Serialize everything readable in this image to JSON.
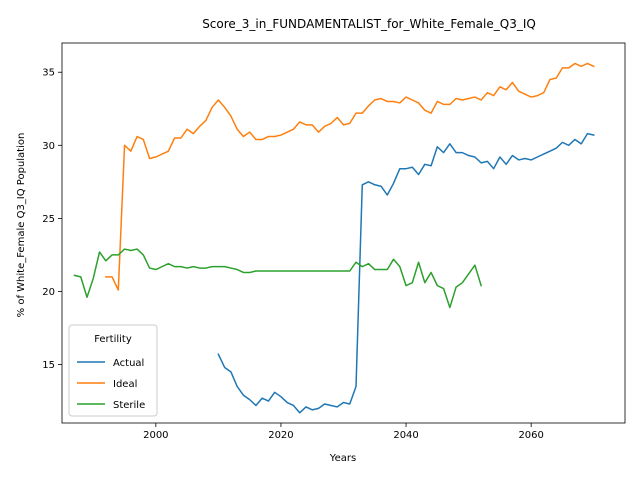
{
  "chart_data": {
    "type": "line",
    "title": "Score_3_in_FUNDAMENTALIST_for_White_Female_Q3_IQ",
    "xlabel": "Years",
    "ylabel": "% of White_Female Q3_IQ Population",
    "xlim": [
      1985,
      2075
    ],
    "ylim": [
      11.0,
      37.0
    ],
    "x_ticks": [
      2000,
      2020,
      2040,
      2060
    ],
    "y_ticks": [
      15,
      20,
      25,
      30,
      35
    ],
    "grid": false,
    "legend": {
      "title": "Fertility",
      "placement": "lower-left"
    },
    "series": [
      {
        "name": "Actual",
        "color": "#1f77b4",
        "x": [
          2010,
          2011,
          2012,
          2013,
          2014,
          2015,
          2016,
          2017,
          2018,
          2019,
          2020,
          2021,
          2022,
          2023,
          2024,
          2025,
          2026,
          2027,
          2028,
          2029,
          2030,
          2031,
          2032,
          2033,
          2034,
          2035,
          2036,
          2037,
          2038,
          2039,
          2040,
          2041,
          2042,
          2043,
          2044,
          2045,
          2046,
          2047,
          2048,
          2049,
          2050,
          2051,
          2052,
          2053,
          2054,
          2055,
          2056,
          2057,
          2058,
          2059,
          2060,
          2061,
          2062,
          2063,
          2064,
          2065,
          2066,
          2067,
          2068,
          2069,
          2070
        ],
        "values": [
          15.7,
          14.8,
          14.5,
          13.5,
          12.9,
          12.6,
          12.2,
          12.7,
          12.5,
          13.1,
          12.8,
          12.4,
          12.2,
          11.7,
          12.1,
          11.9,
          12.0,
          12.3,
          12.2,
          12.1,
          12.4,
          12.3,
          13.5,
          27.3,
          27.5,
          27.3,
          27.2,
          26.6,
          27.4,
          28.4,
          28.4,
          28.5,
          28.0,
          28.7,
          28.6,
          29.9,
          29.5,
          30.1,
          29.5,
          29.5,
          29.3,
          29.2,
          28.8,
          28.9,
          28.4,
          29.2,
          28.7,
          29.3,
          29.0,
          29.1,
          29.0,
          29.2,
          29.4,
          29.6,
          29.8,
          30.2,
          30.0,
          30.4,
          30.1,
          30.8,
          30.7
        ]
      },
      {
        "name": "Ideal",
        "color": "#ff7f0e",
        "x": [
          1992,
          1993,
          1994,
          1995,
          1996,
          1997,
          1998,
          1999,
          2000,
          2001,
          2002,
          2003,
          2004,
          2005,
          2006,
          2007,
          2008,
          2009,
          2010,
          2011,
          2012,
          2013,
          2014,
          2015,
          2016,
          2017,
          2018,
          2019,
          2020,
          2021,
          2022,
          2023,
          2024,
          2025,
          2026,
          2027,
          2028,
          2029,
          2030,
          2031,
          2032,
          2033,
          2034,
          2035,
          2036,
          2037,
          2038,
          2039,
          2040,
          2041,
          2042,
          2043,
          2044,
          2045,
          2046,
          2047,
          2048,
          2049,
          2050,
          2051,
          2052,
          2053,
          2054,
          2055,
          2056,
          2057,
          2058,
          2059,
          2060,
          2061,
          2062,
          2063,
          2064,
          2065,
          2066,
          2067,
          2068,
          2069,
          2070
        ],
        "values": [
          21.0,
          21.0,
          20.1,
          30.0,
          29.6,
          30.6,
          30.4,
          29.1,
          29.2,
          29.4,
          29.6,
          30.5,
          30.5,
          31.1,
          30.8,
          31.3,
          31.7,
          32.6,
          33.1,
          32.6,
          32.0,
          31.1,
          30.6,
          30.9,
          30.4,
          30.4,
          30.6,
          30.6,
          30.7,
          30.9,
          31.1,
          31.6,
          31.4,
          31.4,
          30.9,
          31.3,
          31.5,
          31.9,
          31.4,
          31.5,
          32.2,
          32.2,
          32.7,
          33.1,
          33.2,
          33.0,
          33.0,
          32.9,
          33.3,
          33.1,
          32.9,
          32.4,
          32.2,
          33.0,
          32.8,
          32.8,
          33.2,
          33.1,
          33.2,
          33.3,
          33.1,
          33.6,
          33.4,
          34.0,
          33.8,
          34.3,
          33.7,
          33.5,
          33.3,
          33.4,
          33.6,
          34.5,
          34.6,
          35.3,
          35.3,
          35.6,
          35.4,
          35.6,
          35.4
        ]
      },
      {
        "name": "Sterile",
        "color": "#2ca02c",
        "x": [
          1987,
          1988,
          1989,
          1990,
          1991,
          1992,
          1993,
          1994,
          1995,
          1996,
          1997,
          1998,
          1999,
          2000,
          2001,
          2002,
          2003,
          2004,
          2005,
          2006,
          2007,
          2008,
          2009,
          2010,
          2011,
          2012,
          2013,
          2014,
          2015,
          2016,
          2017,
          2018,
          2019,
          2020,
          2021,
          2022,
          2023,
          2024,
          2025,
          2026,
          2027,
          2028,
          2029,
          2030,
          2031,
          2032,
          2033,
          2034,
          2035,
          2036,
          2037,
          2038,
          2039,
          2040,
          2041,
          2042,
          2043,
          2044,
          2045,
          2046,
          2047,
          2048,
          2049,
          2050,
          2051,
          2052
        ],
        "values": [
          21.1,
          21.0,
          19.6,
          20.9,
          22.7,
          22.1,
          22.5,
          22.5,
          22.9,
          22.8,
          22.9,
          22.5,
          21.6,
          21.5,
          21.7,
          21.9,
          21.7,
          21.7,
          21.6,
          21.7,
          21.6,
          21.6,
          21.7,
          21.7,
          21.7,
          21.6,
          21.5,
          21.3,
          21.3,
          21.4,
          21.4,
          21.4,
          21.4,
          21.4,
          21.4,
          21.4,
          21.4,
          21.4,
          21.4,
          21.4,
          21.4,
          21.4,
          21.4,
          21.4,
          21.4,
          22.0,
          21.7,
          21.9,
          21.5,
          21.5,
          21.5,
          22.2,
          21.7,
          20.4,
          20.6,
          22.0,
          20.6,
          21.3,
          20.4,
          20.2,
          18.9,
          20.3,
          20.6,
          21.2,
          21.8,
          20.4
        ]
      }
    ]
  }
}
